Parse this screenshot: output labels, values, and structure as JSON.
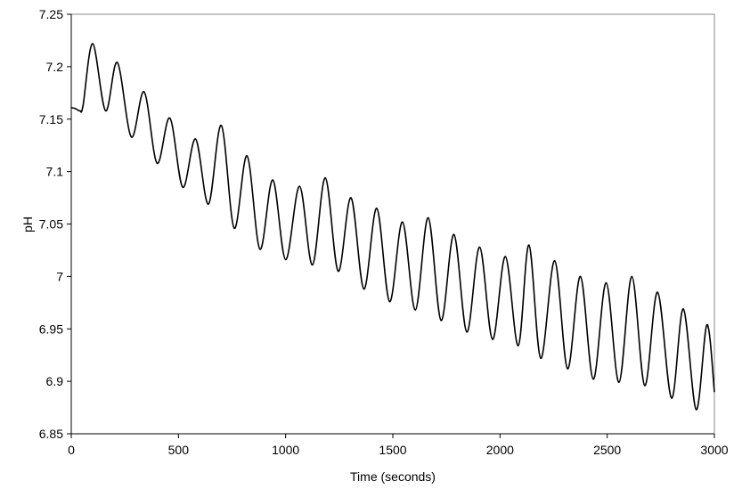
{
  "chart_data": {
    "type": "line",
    "title": "",
    "xlabel": "Time (seconds)",
    "ylabel": "pH",
    "xlim": [
      0,
      3000
    ],
    "ylim": [
      6.85,
      7.25
    ],
    "xticks": [
      "0",
      "500",
      "1000",
      "1500",
      "2000",
      "2500",
      "3000"
    ],
    "yticks": [
      "6.85",
      "6.9",
      "6.95",
      "7",
      "7.05",
      "7.1",
      "7.15",
      "7.2",
      "7.25"
    ],
    "grid": false,
    "legend": "none",
    "line_color": "#000000",
    "series": [
      {
        "x": [
          0,
          20,
          40,
          55,
          100,
          160,
          215,
          280,
          340,
          400,
          460,
          520,
          580,
          640,
          700,
          760,
          820,
          880,
          940,
          1000,
          1065,
          1125,
          1185,
          1245,
          1305,
          1365,
          1425,
          1485,
          1545,
          1605,
          1665,
          1725,
          1785,
          1845,
          1905,
          1965,
          2025,
          2085,
          2135,
          2190,
          2255,
          2315,
          2375,
          2435,
          2495,
          2555,
          2615,
          2675,
          2735,
          2800,
          2855,
          2915,
          2965,
          3000
        ],
        "y": [
          7.161,
          7.16,
          7.158,
          7.163,
          7.222,
          7.158,
          7.204,
          7.133,
          7.176,
          7.108,
          7.151,
          7.085,
          7.131,
          7.069,
          7.144,
          7.046,
          7.115,
          7.026,
          7.092,
          7.016,
          7.086,
          7.011,
          7.094,
          7.005,
          7.075,
          6.988,
          7.065,
          6.976,
          7.052,
          6.968,
          7.056,
          6.958,
          7.04,
          6.947,
          7.028,
          6.94,
          7.019,
          6.934,
          7.03,
          6.922,
          7.015,
          6.912,
          7.0,
          6.902,
          6.994,
          6.899,
          7.0,
          6.896,
          6.985,
          6.884,
          6.969,
          6.873,
          6.954,
          6.89
        ]
      }
    ]
  }
}
